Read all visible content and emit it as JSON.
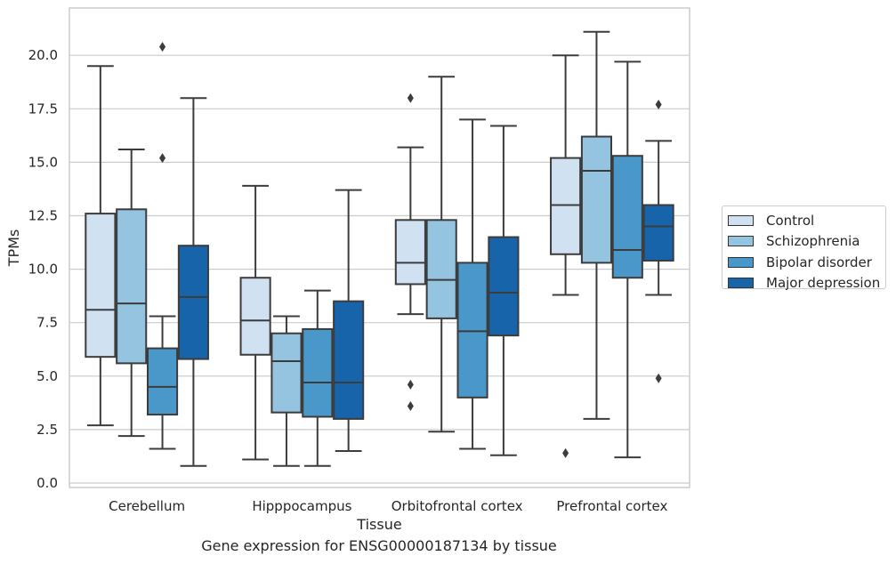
{
  "chart_data": {
    "type": "box",
    "xlabel": "Tissue",
    "ylabel": "TPMs",
    "caption": "Gene expression for ENSG00000187134 by tissue",
    "categories": [
      "Cerebellum",
      "Hipppocampus",
      "Orbitofrontal cortex",
      "Prefrontal cortex"
    ],
    "ylim": [
      -0.2,
      22.2
    ],
    "yticks": [
      "0.0",
      "2.5",
      "5.0",
      "7.5",
      "10.0",
      "12.5",
      "15.0",
      "17.5",
      "20.0"
    ],
    "grid": "horizontal",
    "legend_position": "right",
    "series": [
      {
        "name": "Control",
        "color": "#d0e1f2",
        "boxes": [
          {
            "min": 2.7,
            "q1": 5.9,
            "median": 8.1,
            "q3": 12.6,
            "max": 19.5,
            "outliers": []
          },
          {
            "min": 1.1,
            "q1": 6.0,
            "median": 7.6,
            "q3": 9.6,
            "max": 13.9,
            "outliers": []
          },
          {
            "min": 7.9,
            "q1": 9.3,
            "median": 10.3,
            "q3": 12.3,
            "max": 15.7,
            "outliers": [
              18.0,
              4.6,
              3.6
            ]
          },
          {
            "min": 8.8,
            "q1": 10.7,
            "median": 13.0,
            "q3": 15.2,
            "max": 20.0,
            "outliers": [
              1.4
            ]
          }
        ]
      },
      {
        "name": "Schizophrenia",
        "color": "#94c4df",
        "boxes": [
          {
            "min": 2.2,
            "q1": 5.6,
            "median": 8.4,
            "q3": 12.8,
            "max": 15.6,
            "outliers": []
          },
          {
            "min": 0.8,
            "q1": 3.3,
            "median": 5.7,
            "q3": 7.0,
            "max": 7.8,
            "outliers": []
          },
          {
            "min": 2.4,
            "q1": 7.7,
            "median": 9.5,
            "q3": 12.3,
            "max": 19.0,
            "outliers": []
          },
          {
            "min": 3.0,
            "q1": 10.3,
            "median": 14.6,
            "q3": 16.2,
            "max": 21.1,
            "outliers": []
          }
        ]
      },
      {
        "name": "Bipolar disorder",
        "color": "#4a98c9",
        "boxes": [
          {
            "min": 1.6,
            "q1": 3.2,
            "median": 4.5,
            "q3": 6.3,
            "max": 7.8,
            "outliers": [
              20.4,
              15.2
            ]
          },
          {
            "min": 0.8,
            "q1": 3.1,
            "median": 4.7,
            "q3": 7.2,
            "max": 9.0,
            "outliers": []
          },
          {
            "min": 1.6,
            "q1": 4.0,
            "median": 7.1,
            "q3": 10.3,
            "max": 17.0,
            "outliers": []
          },
          {
            "min": 1.2,
            "q1": 9.6,
            "median": 10.9,
            "q3": 15.3,
            "max": 19.7,
            "outliers": []
          }
        ]
      },
      {
        "name": "Major depression",
        "color": "#1764ab",
        "boxes": [
          {
            "min": 0.8,
            "q1": 5.8,
            "median": 8.7,
            "q3": 11.1,
            "max": 18.0,
            "outliers": []
          },
          {
            "min": 1.5,
            "q1": 3.0,
            "median": 4.7,
            "q3": 8.5,
            "max": 13.7,
            "outliers": []
          },
          {
            "min": 1.3,
            "q1": 6.9,
            "median": 8.9,
            "q3": 11.5,
            "max": 16.7,
            "outliers": []
          },
          {
            "min": 8.8,
            "q1": 10.4,
            "median": 12.0,
            "q3": 13.0,
            "max": 16.0,
            "outliers": [
              17.7,
              4.9
            ]
          }
        ]
      }
    ]
  }
}
